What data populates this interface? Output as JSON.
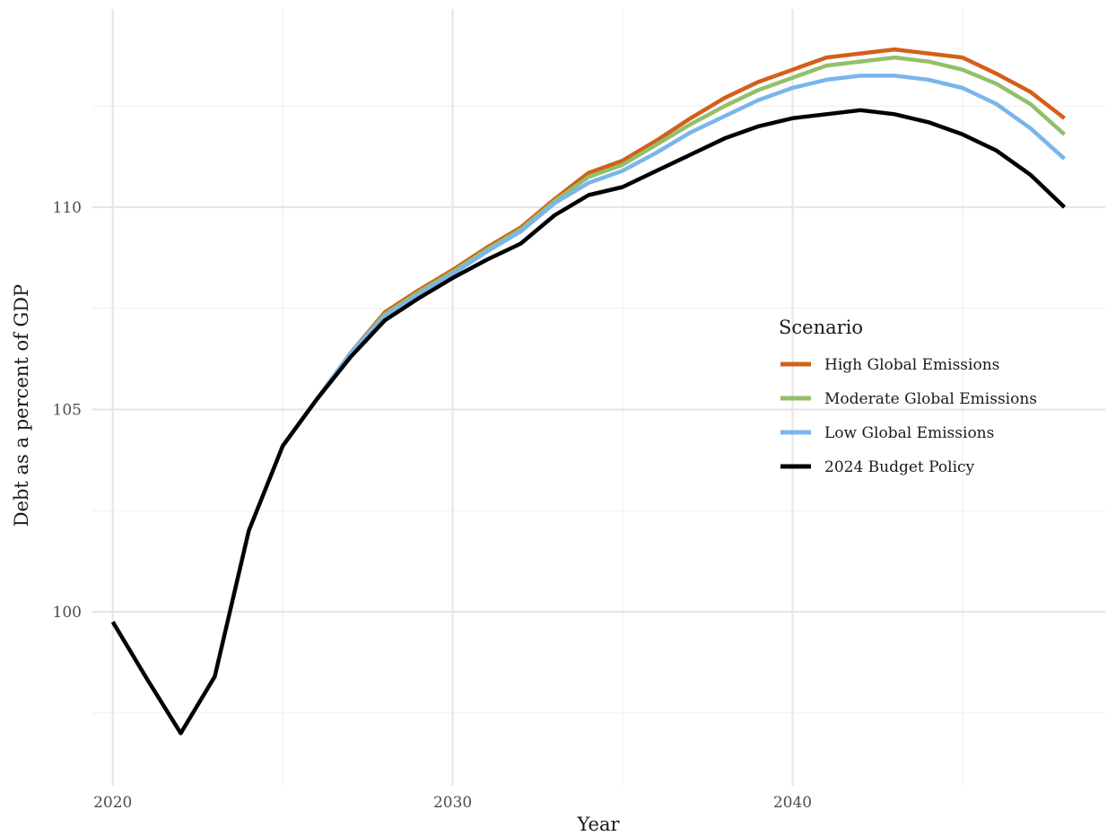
{
  "chart_data": {
    "type": "line",
    "title": "",
    "xlabel": "Year",
    "ylabel": "Debt as a percent of GDP",
    "xlim": [
      2019.4,
      2049.2
    ],
    "ylim": [
      95.7,
      114.9
    ],
    "x_ticks": [
      2020,
      2030,
      2040
    ],
    "y_ticks": [
      100,
      105,
      110
    ],
    "x_minor_ticks": [
      2025,
      2035,
      2045
    ],
    "y_minor_ticks": [
      97.5,
      102.5,
      107.5,
      112.5
    ],
    "grid": true,
    "legend": {
      "title": "Scenario",
      "position": "right"
    },
    "series": [
      {
        "name": "High Global Emissions",
        "color": "#d2601b",
        "x": [
          2025,
          2026,
          2027,
          2028,
          2029,
          2030,
          2031,
          2032,
          2033,
          2034,
          2035,
          2036,
          2037,
          2038,
          2039,
          2040,
          2041,
          2042,
          2043,
          2044,
          2045,
          2046,
          2047,
          2048
        ],
        "values": [
          104.1,
          105.25,
          106.4,
          107.4,
          107.95,
          108.45,
          109.0,
          109.5,
          110.2,
          110.85,
          111.15,
          111.65,
          112.2,
          112.7,
          113.1,
          113.4,
          113.7,
          113.8,
          113.9,
          113.8,
          113.7,
          113.3,
          112.85,
          112.2
        ]
      },
      {
        "name": "Moderate Global Emissions",
        "color": "#93bf6b",
        "x": [
          2025,
          2026,
          2027,
          2028,
          2029,
          2030,
          2031,
          2032,
          2033,
          2034,
          2035,
          2036,
          2037,
          2038,
          2039,
          2040,
          2041,
          2042,
          2043,
          2044,
          2045,
          2046,
          2047,
          2048
        ],
        "values": [
          104.1,
          105.25,
          106.4,
          107.35,
          107.9,
          108.4,
          108.95,
          109.45,
          110.15,
          110.75,
          111.05,
          111.55,
          112.05,
          112.5,
          112.9,
          113.2,
          113.5,
          113.6,
          113.7,
          113.6,
          113.4,
          113.05,
          112.55,
          111.8
        ]
      },
      {
        "name": "Low Global Emissions",
        "color": "#7ab5ec",
        "x": [
          2025,
          2026,
          2027,
          2028,
          2029,
          2030,
          2031,
          2032,
          2033,
          2034,
          2035,
          2036,
          2037,
          2038,
          2039,
          2040,
          2041,
          2042,
          2043,
          2044,
          2045,
          2046,
          2047,
          2048
        ],
        "values": [
          104.1,
          105.25,
          106.4,
          107.3,
          107.85,
          108.35,
          108.9,
          109.4,
          110.1,
          110.6,
          110.9,
          111.35,
          111.85,
          112.25,
          112.65,
          112.95,
          113.15,
          113.25,
          113.25,
          113.15,
          112.95,
          112.55,
          111.95,
          111.2
        ]
      },
      {
        "name": "2024 Budget Policy",
        "color": "#000000",
        "x": [
          2020,
          2021,
          2022,
          2023,
          2024,
          2025,
          2026,
          2027,
          2028,
          2029,
          2030,
          2031,
          2032,
          2033,
          2034,
          2035,
          2036,
          2037,
          2038,
          2039,
          2040,
          2041,
          2042,
          2043,
          2044,
          2045,
          2046,
          2047,
          2048
        ],
        "values": [
          99.75,
          98.35,
          97.0,
          98.4,
          102.0,
          104.1,
          105.25,
          106.3,
          107.2,
          107.75,
          108.25,
          108.7,
          109.1,
          109.8,
          110.3,
          110.5,
          110.9,
          111.3,
          111.7,
          112.0,
          112.2,
          112.3,
          112.4,
          112.3,
          112.1,
          111.8,
          111.4,
          110.8,
          110.0
        ]
      }
    ]
  }
}
